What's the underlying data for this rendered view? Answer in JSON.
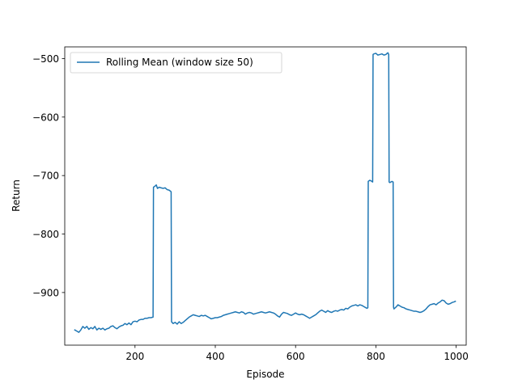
{
  "chart_data": {
    "type": "line",
    "title": "",
    "xlabel": "Episode",
    "ylabel": "Return",
    "xlim": [
      25,
      1025
    ],
    "ylim": [
      -990,
      -480
    ],
    "xticks": [
      200,
      400,
      600,
      800,
      1000
    ],
    "yticks": [
      -900,
      -800,
      -700,
      -600,
      -500
    ],
    "xtick_labels": [
      "200",
      "400",
      "600",
      "800",
      "1000"
    ],
    "ytick_labels": [
      "−900",
      "−800",
      "−700",
      "−600",
      "−500"
    ],
    "grid": false,
    "legend": {
      "placement": "top-left"
    },
    "series": [
      {
        "name": "Rolling Mean (window size 50)",
        "color": "#1f77b4",
        "points": [
          [
            50,
            -964
          ],
          [
            55,
            -966
          ],
          [
            60,
            -968
          ],
          [
            65,
            -964
          ],
          [
            70,
            -958
          ],
          [
            75,
            -961
          ],
          [
            80,
            -958
          ],
          [
            85,
            -963
          ],
          [
            90,
            -960
          ],
          [
            95,
            -962
          ],
          [
            100,
            -958
          ],
          [
            105,
            -964
          ],
          [
            110,
            -961
          ],
          [
            115,
            -963
          ],
          [
            120,
            -961
          ],
          [
            125,
            -964
          ],
          [
            130,
            -962
          ],
          [
            135,
            -961
          ],
          [
            140,
            -958
          ],
          [
            145,
            -957
          ],
          [
            150,
            -960
          ],
          [
            155,
            -962
          ],
          [
            160,
            -959
          ],
          [
            165,
            -957
          ],
          [
            170,
            -956
          ],
          [
            175,
            -953
          ],
          [
            180,
            -955
          ],
          [
            185,
            -952
          ],
          [
            190,
            -955
          ],
          [
            195,
            -950
          ],
          [
            200,
            -949
          ],
          [
            205,
            -950
          ],
          [
            210,
            -947
          ],
          [
            215,
            -946
          ],
          [
            220,
            -946
          ],
          [
            225,
            -944
          ],
          [
            230,
            -944
          ],
          [
            235,
            -943
          ],
          [
            240,
            -943
          ],
          [
            245,
            -942
          ],
          [
            246,
            -720
          ],
          [
            250,
            -718
          ],
          [
            253,
            -716
          ],
          [
            256,
            -722
          ],
          [
            260,
            -720
          ],
          [
            265,
            -721
          ],
          [
            270,
            -722
          ],
          [
            275,
            -721
          ],
          [
            280,
            -724
          ],
          [
            285,
            -725
          ],
          [
            289,
            -727
          ],
          [
            290,
            -728
          ],
          [
            291,
            -950
          ],
          [
            295,
            -953
          ],
          [
            300,
            -951
          ],
          [
            305,
            -954
          ],
          [
            310,
            -950
          ],
          [
            315,
            -953
          ],
          [
            320,
            -951
          ],
          [
            325,
            -948
          ],
          [
            330,
            -945
          ],
          [
            335,
            -942
          ],
          [
            340,
            -940
          ],
          [
            345,
            -938
          ],
          [
            350,
            -939
          ],
          [
            355,
            -940
          ],
          [
            360,
            -941
          ],
          [
            365,
            -939
          ],
          [
            370,
            -940
          ],
          [
            375,
            -939
          ],
          [
            380,
            -941
          ],
          [
            385,
            -943
          ],
          [
            390,
            -945
          ],
          [
            395,
            -944
          ],
          [
            400,
            -943
          ],
          [
            405,
            -943
          ],
          [
            410,
            -942
          ],
          [
            415,
            -941
          ],
          [
            420,
            -939
          ],
          [
            425,
            -938
          ],
          [
            430,
            -937
          ],
          [
            435,
            -936
          ],
          [
            440,
            -935
          ],
          [
            445,
            -934
          ],
          [
            450,
            -933
          ],
          [
            455,
            -934
          ],
          [
            460,
            -935
          ],
          [
            465,
            -933
          ],
          [
            470,
            -934
          ],
          [
            475,
            -937
          ],
          [
            480,
            -935
          ],
          [
            485,
            -934
          ],
          [
            490,
            -935
          ],
          [
            495,
            -937
          ],
          [
            500,
            -936
          ],
          [
            505,
            -935
          ],
          [
            510,
            -934
          ],
          [
            515,
            -933
          ],
          [
            520,
            -934
          ],
          [
            525,
            -935
          ],
          [
            530,
            -934
          ],
          [
            535,
            -933
          ],
          [
            540,
            -934
          ],
          [
            545,
            -935
          ],
          [
            550,
            -937
          ],
          [
            555,
            -940
          ],
          [
            560,
            -942
          ],
          [
            565,
            -937
          ],
          [
            570,
            -934
          ],
          [
            575,
            -935
          ],
          [
            580,
            -936
          ],
          [
            585,
            -938
          ],
          [
            590,
            -939
          ],
          [
            595,
            -937
          ],
          [
            600,
            -935
          ],
          [
            605,
            -937
          ],
          [
            610,
            -938
          ],
          [
            615,
            -937
          ],
          [
            620,
            -938
          ],
          [
            625,
            -940
          ],
          [
            630,
            -942
          ],
          [
            635,
            -944
          ],
          [
            640,
            -942
          ],
          [
            645,
            -940
          ],
          [
            650,
            -938
          ],
          [
            655,
            -935
          ],
          [
            660,
            -932
          ],
          [
            665,
            -930
          ],
          [
            670,
            -932
          ],
          [
            675,
            -934
          ],
          [
            680,
            -931
          ],
          [
            685,
            -933
          ],
          [
            690,
            -934
          ],
          [
            695,
            -932
          ],
          [
            700,
            -931
          ],
          [
            705,
            -932
          ],
          [
            710,
            -930
          ],
          [
            715,
            -929
          ],
          [
            720,
            -930
          ],
          [
            725,
            -927
          ],
          [
            730,
            -928
          ],
          [
            735,
            -925
          ],
          [
            740,
            -923
          ],
          [
            745,
            -922
          ],
          [
            750,
            -921
          ],
          [
            755,
            -923
          ],
          [
            760,
            -921
          ],
          [
            765,
            -922
          ],
          [
            770,
            -924
          ],
          [
            775,
            -926
          ],
          [
            778,
            -927
          ],
          [
            780,
            -926
          ],
          [
            781,
            -710
          ],
          [
            785,
            -708
          ],
          [
            790,
            -710
          ],
          [
            792,
            -711
          ],
          [
            793,
            -493
          ],
          [
            795,
            -492
          ],
          [
            800,
            -491
          ],
          [
            805,
            -494
          ],
          [
            810,
            -493
          ],
          [
            815,
            -492
          ],
          [
            820,
            -494
          ],
          [
            825,
            -493
          ],
          [
            828,
            -491
          ],
          [
            830,
            -490
          ],
          [
            832,
            -493
          ],
          [
            833,
            -711
          ],
          [
            835,
            -712
          ],
          [
            840,
            -710
          ],
          [
            843,
            -711
          ],
          [
            844,
            -925
          ],
          [
            845,
            -928
          ],
          [
            850,
            -925
          ],
          [
            855,
            -921
          ],
          [
            860,
            -923
          ],
          [
            865,
            -925
          ],
          [
            870,
            -926
          ],
          [
            875,
            -928
          ],
          [
            880,
            -929
          ],
          [
            885,
            -930
          ],
          [
            890,
            -931
          ],
          [
            895,
            -932
          ],
          [
            900,
            -932
          ],
          [
            905,
            -933
          ],
          [
            910,
            -934
          ],
          [
            915,
            -933
          ],
          [
            920,
            -931
          ],
          [
            925,
            -928
          ],
          [
            930,
            -924
          ],
          [
            935,
            -921
          ],
          [
            940,
            -920
          ],
          [
            945,
            -919
          ],
          [
            950,
            -921
          ],
          [
            955,
            -918
          ],
          [
            960,
            -916
          ],
          [
            965,
            -913
          ],
          [
            970,
            -914
          ],
          [
            975,
            -918
          ],
          [
            980,
            -920
          ],
          [
            985,
            -919
          ],
          [
            990,
            -917
          ],
          [
            995,
            -916
          ],
          [
            998,
            -915
          ]
        ]
      }
    ]
  }
}
